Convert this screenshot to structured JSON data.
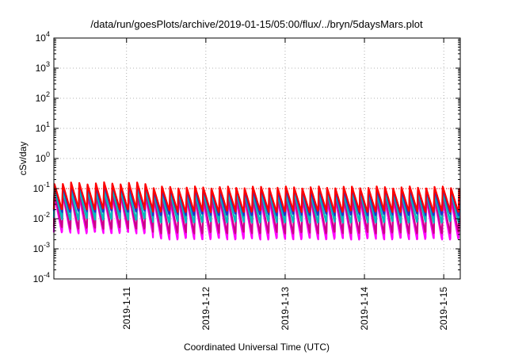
{
  "chart_data": {
    "type": "line",
    "title": "/data/run/goesPlots/archive/2019-01-15/05:00/flux/../bryn/5daysMars.plot",
    "xlabel": "Coordinated Universal Time (UTC)",
    "ylabel": "cSv/day",
    "yscale": "log",
    "ylim": [
      0.0001,
      10000
    ],
    "xlim": [
      "2019-01-10T02:00",
      "2019-01-15T05:00"
    ],
    "grid": true,
    "x_ticks": [
      "2019-1-11",
      "2019-1-12",
      "2019-1-13",
      "2019-1-14",
      "2019-1-15"
    ],
    "y_ticks": [
      {
        "base": "10",
        "exp": "4"
      },
      {
        "base": "10",
        "exp": "3"
      },
      {
        "base": "10",
        "exp": "2"
      },
      {
        "base": "10",
        "exp": "1"
      },
      {
        "base": "10",
        "exp": "0"
      },
      {
        "base": "10",
        "exp": "-1"
      },
      {
        "base": "10",
        "exp": "-2"
      },
      {
        "base": "10",
        "exp": "-3"
      },
      {
        "base": "10",
        "exp": "-4"
      }
    ],
    "reference_line": {
      "y": 0.1,
      "color": "#ff0000",
      "style": "dotted"
    },
    "sawtooth_period_hours": 2.5,
    "series": [
      {
        "color": "#ff00ff",
        "peak": 0.045,
        "trough": 0.0022,
        "peak_early": 0.06,
        "trough_early": 0.0035
      },
      {
        "color": "#cc0088",
        "peak": 0.055,
        "trough": 0.0035,
        "peak_early": 0.07,
        "trough_early": 0.005
      },
      {
        "color": "#00bbbb",
        "peak": 0.075,
        "trough": 0.008,
        "peak_early": 0.09,
        "trough_early": 0.01
      },
      {
        "color": "#2233cc",
        "peak": 0.095,
        "trough": 0.014,
        "peak_early": 0.13,
        "trough_early": 0.018
      },
      {
        "color": "#ff0000",
        "peak": 0.11,
        "trough": 0.018,
        "peak_early": 0.15,
        "trough_early": 0.022
      }
    ]
  }
}
